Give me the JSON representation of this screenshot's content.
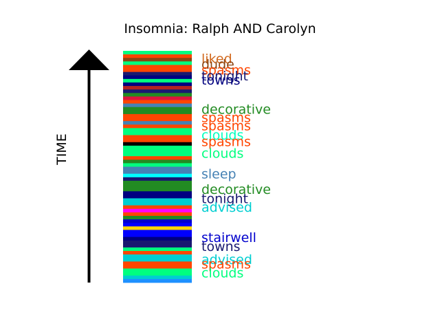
{
  "chart_data": {
    "type": "bar",
    "title": "Insomnia: Ralph AND Carolyn",
    "ylabel": "TIME",
    "ylim": [
      0,
      1
    ],
    "stripes": [
      "#00ff7f",
      "#ff4500",
      "#8b4513",
      "#00ff7f",
      "#ff4500",
      "#ff4500",
      "#191970",
      "#000080",
      "#00ff7f",
      "#000080",
      "#b22222",
      "#191970",
      "#228b22",
      "#dc143c",
      "#ff4500",
      "#4682b4",
      "#228b22",
      "#228b22",
      "#ff4500",
      "#ff4500",
      "#4682b4",
      "#ff4500",
      "#00ff7f",
      "#00ff7f",
      "#ff4500",
      "#ff4500",
      "#000000",
      "#00ff7f",
      "#00ff7f",
      "#00ff7f",
      "#ff4500",
      "#228b22",
      "#00ff7f",
      "#4682b4",
      "#4682b4",
      "#00ffff",
      "#191970",
      "#228b22",
      "#228b22",
      "#228b22",
      "#000080",
      "#000080",
      "#00ced1",
      "#00ced1",
      "#ff4500",
      "#ff00ff",
      "#ff4500",
      "#228b22",
      "#0000cd",
      "#0000ff",
      "#ffd700",
      "#0000ff",
      "#0000ff",
      "#000080",
      "#191970",
      "#191970",
      "#00ff7f",
      "#ff4500",
      "#00ced1",
      "#00ced1",
      "#ff4500",
      "#ff4500",
      "#00ff7f",
      "#00ff7f",
      "#00ced1",
      "#1e90ff"
    ],
    "labels": [
      {
        "text": "liked",
        "pos": 0.035,
        "color": "#d2691e"
      },
      {
        "text": "dude",
        "pos": 0.06,
        "color": "#8b4513"
      },
      {
        "text": "spasms",
        "pos": 0.085,
        "color": "#ff4500"
      },
      {
        "text": "tonight",
        "pos": 0.11,
        "color": "#191970"
      },
      {
        "text": "towns",
        "pos": 0.128,
        "color": "#000080"
      },
      {
        "text": "decorative",
        "pos": 0.253,
        "color": "#228b22"
      },
      {
        "text": "spasms",
        "pos": 0.29,
        "color": "#ff4500"
      },
      {
        "text": "spasms",
        "pos": 0.325,
        "color": "#ff4500"
      },
      {
        "text": "clouds",
        "pos": 0.365,
        "color": "#00ffbf"
      },
      {
        "text": "spasms",
        "pos": 0.393,
        "color": "#ff4500"
      },
      {
        "text": "clouds",
        "pos": 0.443,
        "color": "#00ff7f"
      },
      {
        "text": "sleep",
        "pos": 0.533,
        "color": "#4682b4"
      },
      {
        "text": "decorative",
        "pos": 0.6,
        "color": "#228b22"
      },
      {
        "text": "tonight",
        "pos": 0.64,
        "color": "#191970"
      },
      {
        "text": "advised",
        "pos": 0.677,
        "color": "#00ced1"
      },
      {
        "text": "stairwell",
        "pos": 0.807,
        "color": "#0000cd"
      },
      {
        "text": "towns",
        "pos": 0.845,
        "color": "#191970"
      },
      {
        "text": "advised",
        "pos": 0.902,
        "color": "#00ced1"
      },
      {
        "text": "spasms",
        "pos": 0.922,
        "color": "#ff4500"
      },
      {
        "text": "clouds",
        "pos": 0.96,
        "color": "#00ff7f"
      }
    ]
  }
}
